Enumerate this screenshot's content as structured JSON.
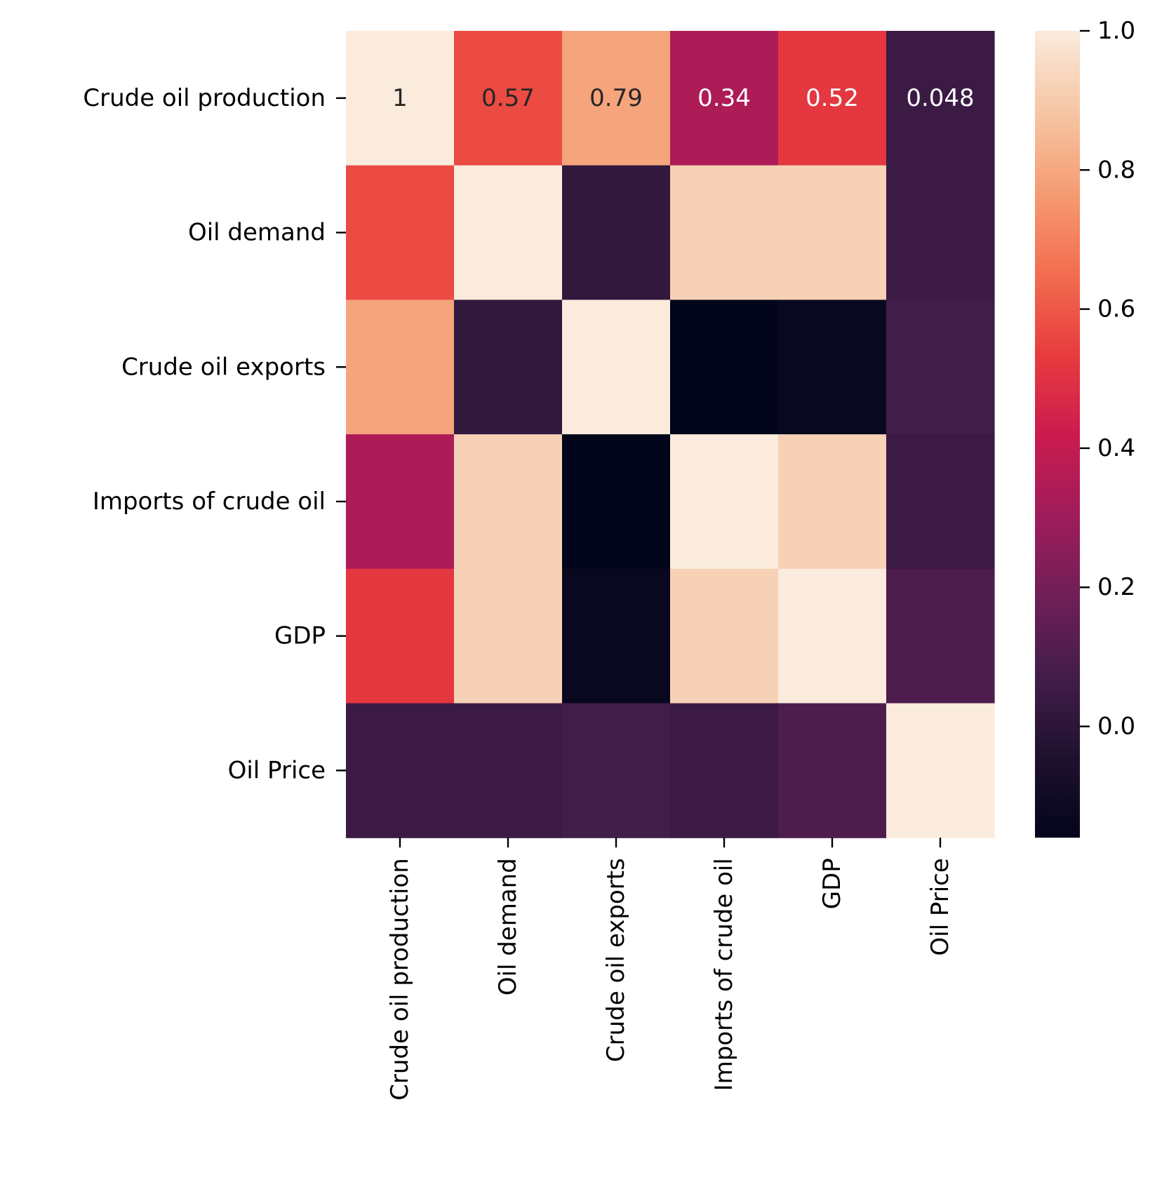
{
  "chart_data": {
    "type": "heatmap",
    "rows": [
      "Crude oil production",
      "Oil demand",
      "Crude oil exports",
      "Imports of crude oil",
      "GDP",
      "Oil Price"
    ],
    "columns": [
      "Crude oil production",
      "Oil demand",
      "Crude oil exports",
      "Imports of crude oil",
      "GDP",
      "Oil Price"
    ],
    "values": [
      [
        1.0,
        0.57,
        0.79,
        0.34,
        0.52,
        0.048
      ],
      [
        0.57,
        1.0,
        0.02,
        0.92,
        0.92,
        0.05
      ],
      [
        0.79,
        0.02,
        1.0,
        -0.16,
        -0.13,
        0.07
      ],
      [
        0.34,
        0.92,
        -0.16,
        1.0,
        0.92,
        0.05
      ],
      [
        0.52,
        0.92,
        -0.13,
        0.92,
        1.0,
        0.1
      ],
      [
        0.048,
        0.05,
        0.07,
        0.05,
        0.1,
        1.0
      ]
    ],
    "annotations": [
      [
        "1",
        "0.57",
        "0.79",
        "0.34",
        "0.52",
        "0.048"
      ],
      [
        "",
        "",
        "",
        "",
        "",
        ""
      ],
      [
        "",
        "",
        "",
        "",
        "",
        ""
      ],
      [
        "",
        "",
        "",
        "",
        "",
        ""
      ],
      [
        "",
        "",
        "",
        "",
        "",
        ""
      ],
      [
        "",
        "",
        "",
        "",
        "",
        ""
      ]
    ],
    "colorbar": {
      "vmin": -0.16,
      "vmax": 1.0,
      "ticks": [
        0.0,
        0.2,
        0.4,
        0.6,
        0.8,
        1.0
      ],
      "tick_labels": [
        "0.0",
        "0.2",
        "0.4",
        "0.6",
        "0.8",
        "1.0"
      ]
    },
    "colormap": "rocket",
    "title": "",
    "xlabel": "",
    "ylabel": ""
  }
}
